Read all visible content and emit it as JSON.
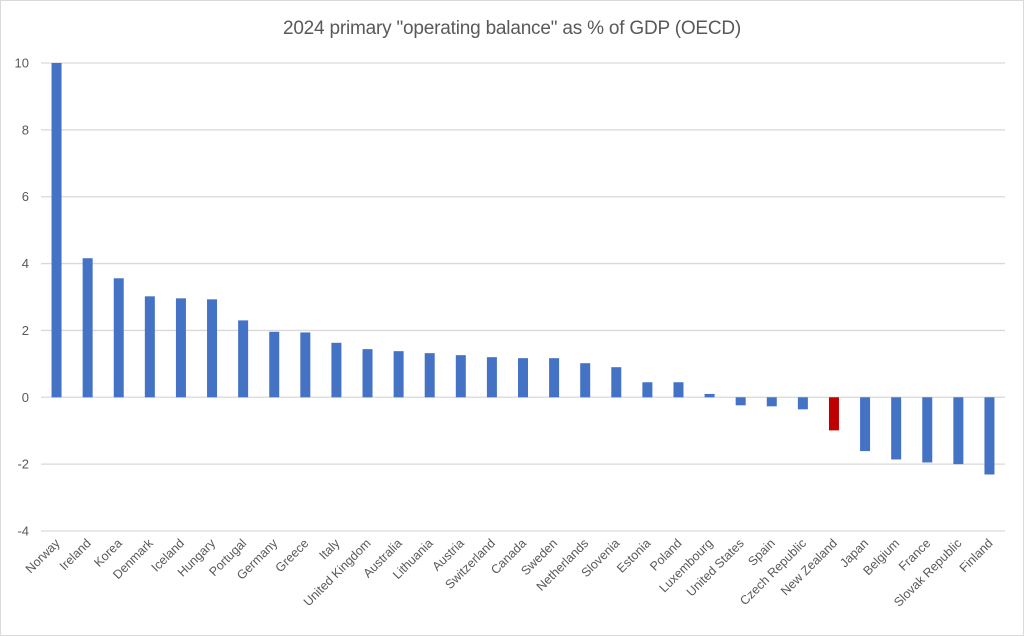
{
  "chart_data": {
    "type": "bar",
    "title": "2024 primary \"operating balance\" as % of GDP (OECD)",
    "xlabel": "",
    "ylabel": "",
    "ylim": [
      -4,
      10
    ],
    "yticks": [
      -4,
      -2,
      0,
      2,
      4,
      6,
      8,
      10
    ],
    "grid": true,
    "legend": "none",
    "categories": [
      "Norway",
      "Ireland",
      "Korea",
      "Denmark",
      "Iceland",
      "Hungary",
      "Portugal",
      "Germany",
      "Greece",
      "Italy",
      "United Kingdom",
      "Australia",
      "Lithuania",
      "Austria",
      "Switzerland",
      "Canada",
      "Sweden",
      "Netherlands",
      "Slovenia",
      "Estonia",
      "Poland",
      "Luxembourg",
      "United States",
      "Spain",
      "Czech Republic",
      "New Zealand",
      "Japan",
      "Belgium",
      "France",
      "Slovak Republic",
      "Finland"
    ],
    "series": [
      {
        "name": "Primary operating balance (% of GDP)",
        "values": [
          10.0,
          4.16,
          3.56,
          3.02,
          2.96,
          2.93,
          2.3,
          1.96,
          1.94,
          1.63,
          1.44,
          1.38,
          1.32,
          1.26,
          1.2,
          1.17,
          1.17,
          1.02,
          0.9,
          0.45,
          0.45,
          0.1,
          -0.24,
          -0.27,
          -0.36,
          -0.99,
          -1.61,
          -1.86,
          -1.95,
          -2.0,
          -2.31
        ]
      }
    ],
    "highlight": {
      "category": "New Zealand",
      "color": "#c00000"
    },
    "colors": {
      "bar": "#4472c4",
      "highlight": "#c00000"
    }
  }
}
